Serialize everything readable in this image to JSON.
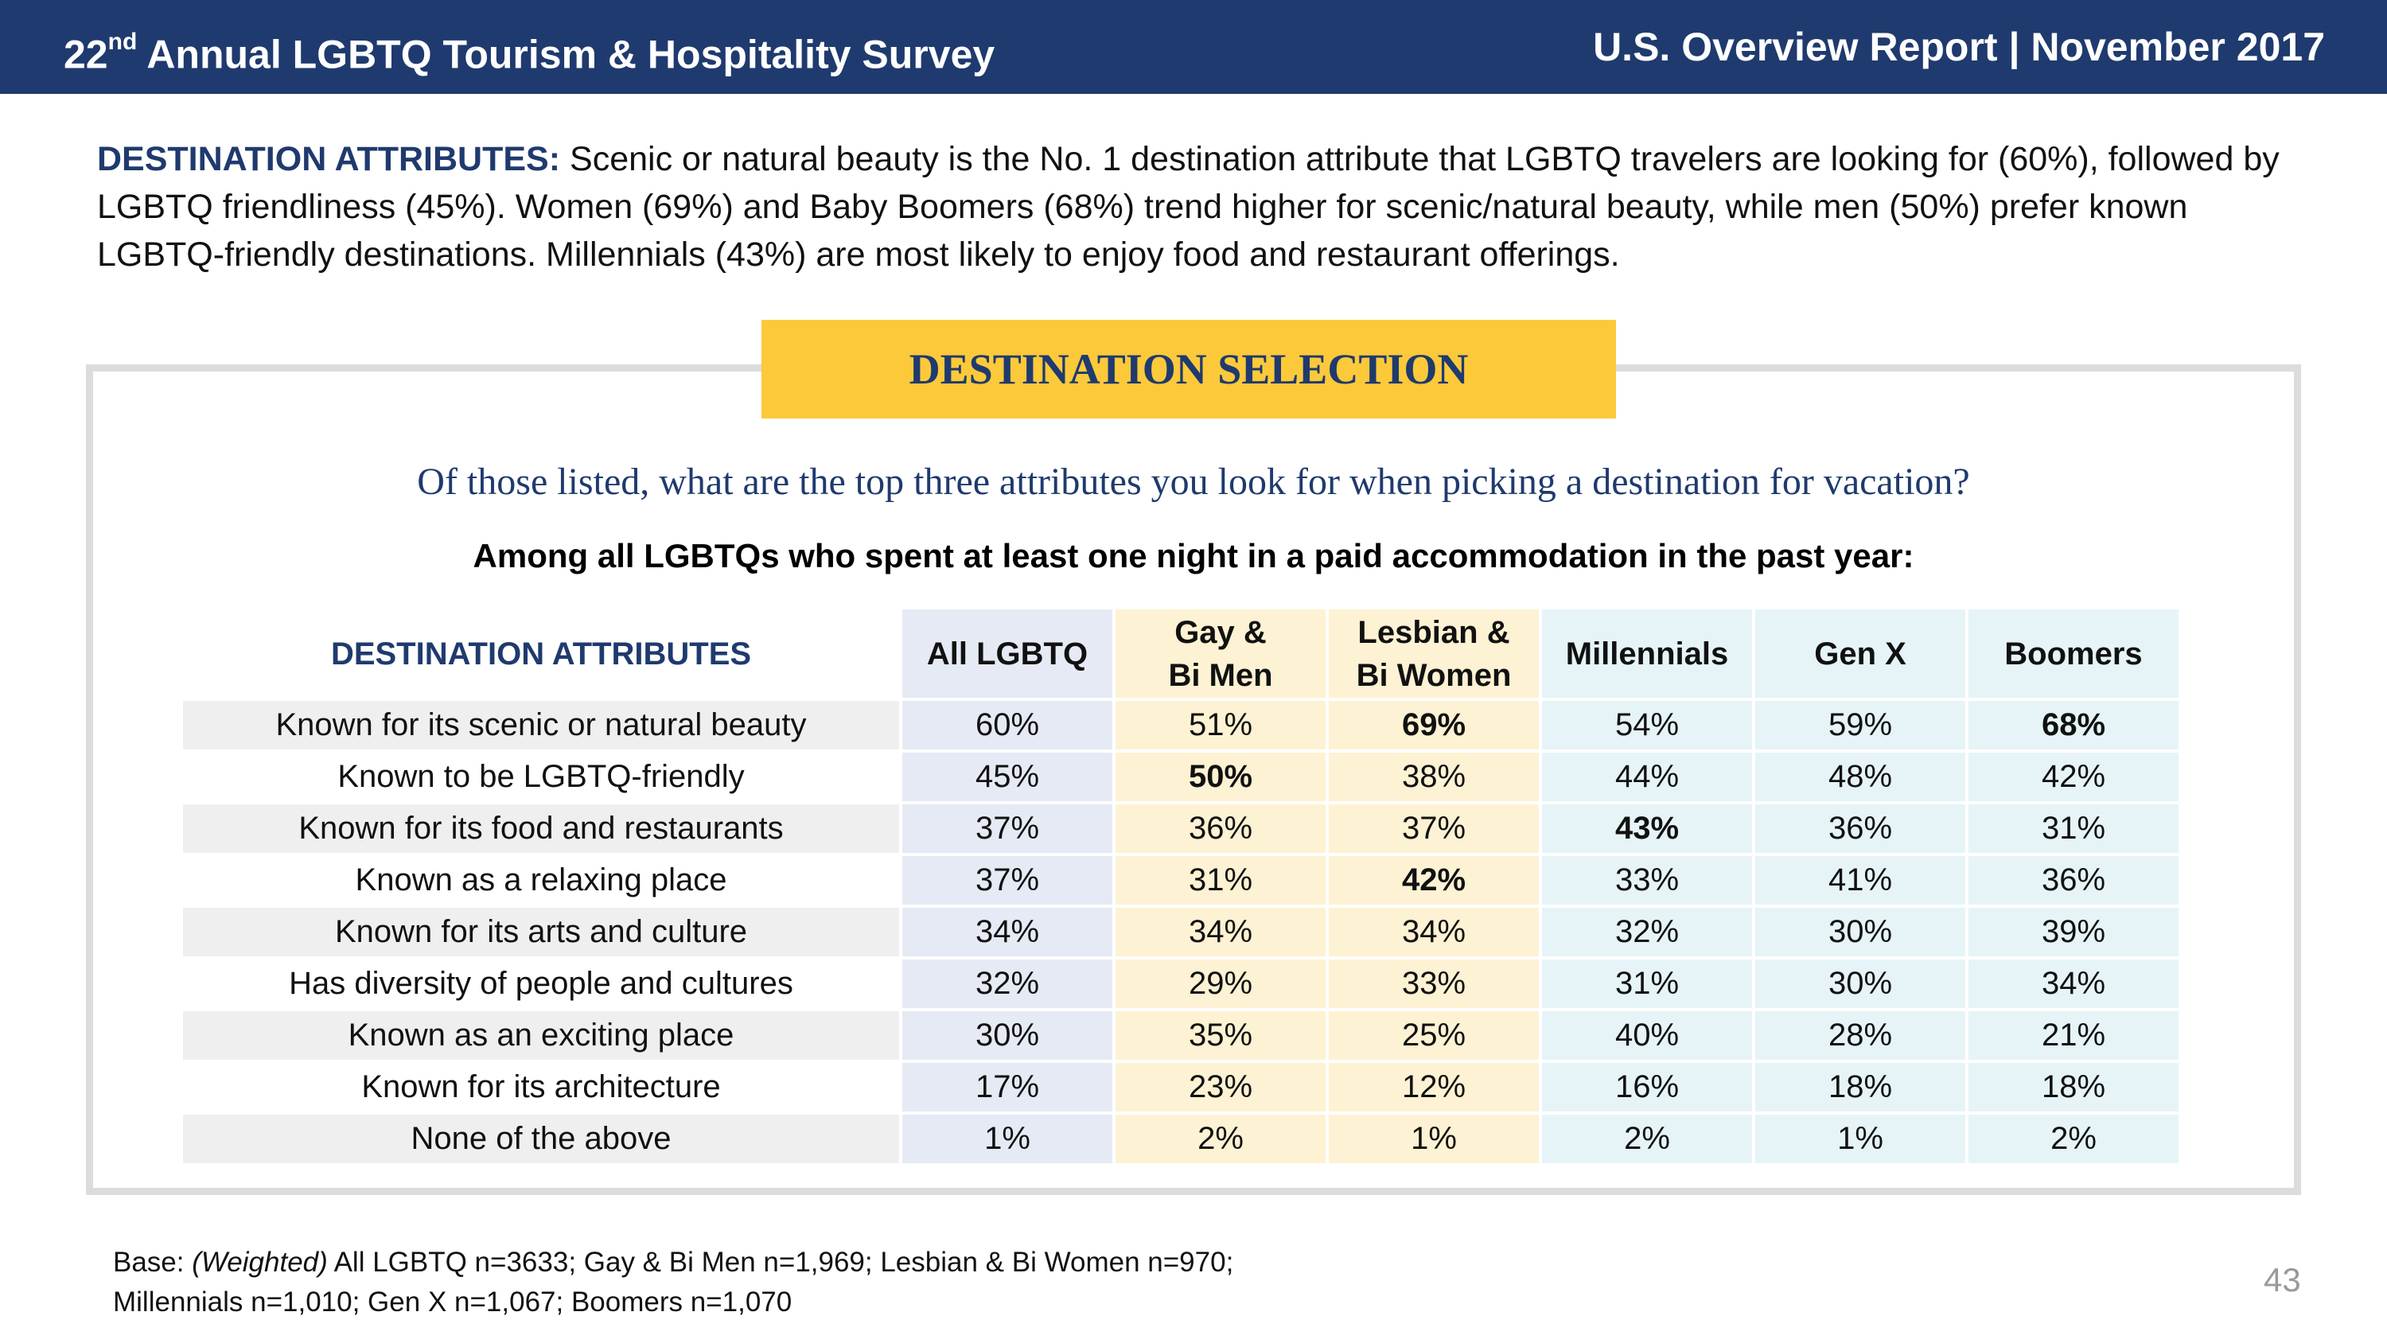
{
  "header": {
    "title_num": "22",
    "title_sup": "nd",
    "title_rest": " Annual LGBTQ Tourism & Hospitality Survey",
    "report": "U.S. Overview Report | November 2017"
  },
  "intro": {
    "lead": "DESTINATION ATTRIBUTES:",
    "text": " Scenic or natural beauty is the No. 1 destination attribute that LGBTQ travelers are looking for (60%), followed by LGBTQ friendliness (45%). Women (69%) and Baby Boomers (68%) trend higher for scenic/natural beauty, while men (50%) prefer known LGBTQ-friendly destinations. Millennials (43%) are most likely to enjoy food and restaurant offerings."
  },
  "banner": "DESTINATION SELECTION",
  "question": "Of those listed, what are the top three attributes you look for when picking a destination for vacation?",
  "subquestion": "Among all LGBTQs who spent at least one night in a paid accommodation in the past year:",
  "table": {
    "headers": {
      "attr": "DESTINATION ATTRIBUTES",
      "all": "All LGBTQ",
      "gay1": "Gay &",
      "gay2": "Bi Men",
      "les1": "Lesbian &",
      "les2": "Bi Women",
      "mil": "Millennials",
      "genx": "Gen X",
      "boom": "Boomers"
    },
    "rows": [
      {
        "attr": "Known for its scenic or natural beauty",
        "all": "60%",
        "gay": "51%",
        "les": "69%",
        "mil": "54%",
        "genx": "59%",
        "boom": "68%",
        "bold": [
          "les",
          "boom"
        ]
      },
      {
        "attr": "Known to be LGBTQ-friendly",
        "all": "45%",
        "gay": "50%",
        "les": "38%",
        "mil": "44%",
        "genx": "48%",
        "boom": "42%",
        "bold": [
          "gay"
        ]
      },
      {
        "attr": "Known for its food and restaurants",
        "all": "37%",
        "gay": "36%",
        "les": "37%",
        "mil": "43%",
        "genx": "36%",
        "boom": "31%",
        "bold": [
          "mil"
        ]
      },
      {
        "attr": "Known as a relaxing place",
        "all": "37%",
        "gay": "31%",
        "les": "42%",
        "mil": "33%",
        "genx": "41%",
        "boom": "36%",
        "bold": [
          "les"
        ]
      },
      {
        "attr": "Known for its arts and culture",
        "all": "34%",
        "gay": "34%",
        "les": "34%",
        "mil": "32%",
        "genx": "30%",
        "boom": "39%",
        "bold": []
      },
      {
        "attr": "Has diversity of people and cultures",
        "all": "32%",
        "gay": "29%",
        "les": "33%",
        "mil": "31%",
        "genx": "30%",
        "boom": "34%",
        "bold": []
      },
      {
        "attr": "Known as an exciting place",
        "all": "30%",
        "gay": "35%",
        "les": "25%",
        "mil": "40%",
        "genx": "28%",
        "boom": "21%",
        "bold": []
      },
      {
        "attr": "Known for its architecture",
        "all": "17%",
        "gay": "23%",
        "les": "12%",
        "mil": "16%",
        "genx": "18%",
        "boom": "18%",
        "bold": []
      },
      {
        "attr": "None of the above",
        "all": "1%",
        "gay": "2%",
        "les": "1%",
        "mil": "2%",
        "genx": "1%",
        "boom": "2%",
        "bold": []
      }
    ]
  },
  "footer": {
    "base_label": "Base: ",
    "weighted": "(Weighted)",
    "line1_rest": " All LGBTQ n=3633; Gay & Bi Men n=1,969; Lesbian & Bi Women n=970;",
    "line2": "Millennials n=1,010; Gen X n=1,067; Boomers n=1,070",
    "page": "43"
  },
  "colors": {
    "header_bg": "#1f3a6e",
    "banner_bg": "#fcc93a",
    "all_col": "#e6eaf5",
    "gay_les_col": "#fdf2d3",
    "generation_col": "#e6f4f8"
  }
}
